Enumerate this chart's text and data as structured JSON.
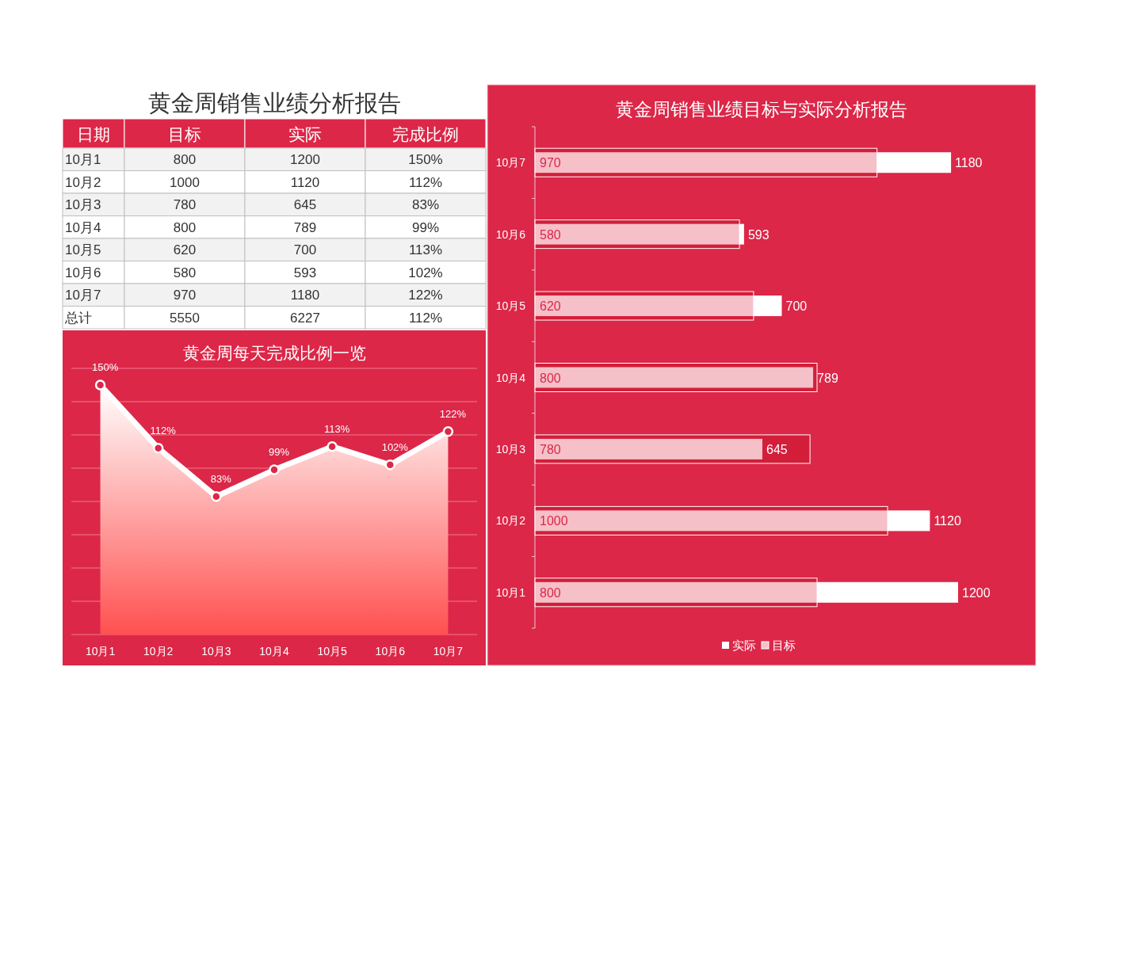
{
  "chart_data": [
    {
      "type": "other",
      "title": "黄金周销售业绩分析报告",
      "annotations": [
        "日期"
      ],
      "categories": [
        "10月1",
        "10月2",
        "10月3",
        "10月4",
        "10月5",
        "10月6",
        "10月7",
        "总计"
      ],
      "data_labels": true,
      "series": [
        {
          "name": "目标",
          "colors": [
            "#f2f2f2",
            "#ffffff",
            "#f2f2f2",
            "#ffffff",
            "#f2f2f2",
            "#ffffff",
            "#f2f2f2",
            "#ffffff"
          ],
          "values": [
            800,
            1000,
            780,
            800,
            620,
            580,
            970,
            5550
          ]
        },
        {
          "name": "实际",
          "colors": [
            "#f2f2f2",
            "#ffffff",
            "#f2f2f2",
            "#ffffff",
            "#f2f2f2",
            "#ffffff",
            "#f2f2f2",
            "#ffffff"
          ],
          "values": [
            1200,
            1120,
            645,
            789,
            700,
            593,
            1180,
            6227
          ]
        },
        {
          "name": "完成比例",
          "colors": [
            "#f2f2f2",
            "#ffffff",
            "#f2f2f2",
            "#ffffff",
            "#f2f2f2",
            "#ffffff",
            "#f2f2f2",
            "#ffffff"
          ],
          "values": [
            150,
            112,
            83,
            99,
            113,
            102,
            122,
            112
          ],
          "value_labels": [
            "150%",
            "112%",
            "83%",
            "99%",
            "113%",
            "102%",
            "122%",
            "112%"
          ]
        }
      ]
    },
    {
      "type": "area",
      "title": "黄金周每天完成比例一览",
      "categories": [
        "10月1",
        "10月2",
        "10月3",
        "10月4",
        "10月5",
        "10月6",
        "10月7"
      ],
      "values": [
        150,
        112,
        83,
        99,
        113,
        102,
        122
      ],
      "value_labels": [
        "150%",
        "112%",
        "83%",
        "99%",
        "113%",
        "102%",
        "122%"
      ],
      "color": "#ffffff",
      "ylim": [
        0,
        160
      ],
      "yticks": [
        {
          "value": 0,
          "label": null
        },
        {
          "value": 20,
          "label": null
        },
        {
          "value": 40,
          "label": null
        },
        {
          "value": 60,
          "label": null
        },
        {
          "value": 80,
          "label": null
        },
        {
          "value": 100,
          "label": null
        },
        {
          "value": 120,
          "label": null
        },
        {
          "value": 140,
          "label": null
        },
        {
          "value": 160,
          "label": null
        }
      ],
      "grid": "y",
      "tick_labels": "x",
      "marker": "circle"
    },
    {
      "type": "bar",
      "orientation": "horizontal",
      "title": "黄金周销售业绩目标与实际分析报告",
      "categories": [
        "10月7",
        "10月6",
        "10月5",
        "10月4",
        "10月3",
        "10月2",
        "10月1"
      ],
      "data_labels": true,
      "legend": "bottom",
      "series": [
        {
          "name": "实际",
          "color": "#ffffff",
          "values": [
            1180,
            593,
            700,
            789,
            645,
            1120,
            1200
          ]
        },
        {
          "name": "目标",
          "color": "#f5c0c8",
          "values": [
            970,
            580,
            620,
            800,
            780,
            1000,
            800
          ]
        }
      ]
    }
  ]
}
